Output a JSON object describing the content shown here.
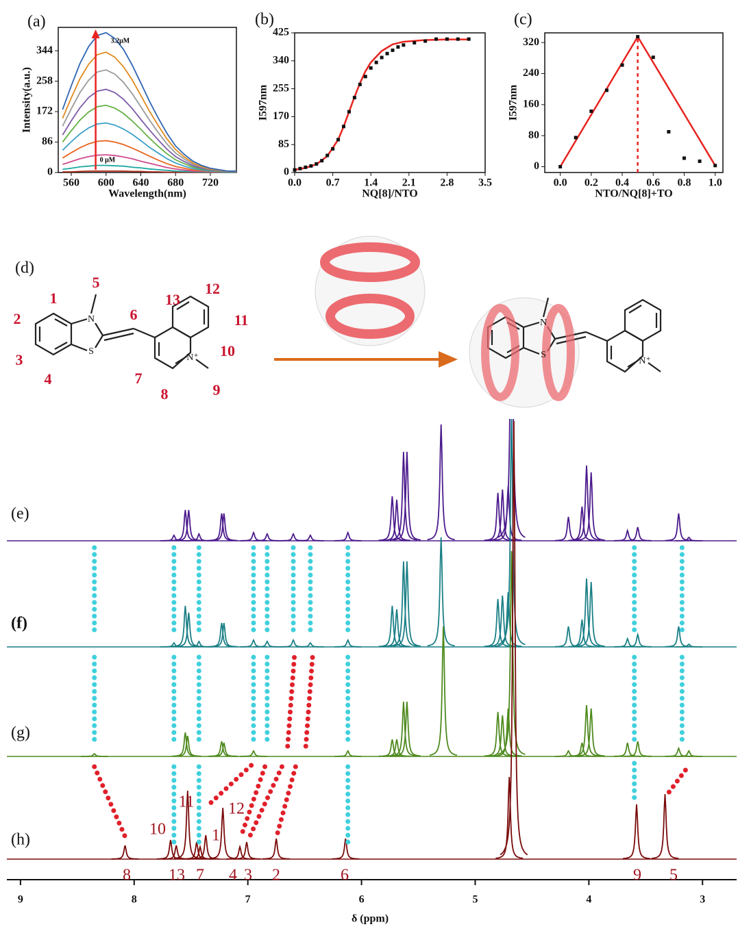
{
  "panel_labels": [
    "(a)",
    "(b)",
    "(c)",
    "(d)",
    "(e)",
    "(f)",
    "(g)",
    "(h)"
  ],
  "chart_data": [
    {
      "type": "line",
      "xlabel": "Wavelength(nm)",
      "ylabel": "Intensity(a.u.)",
      "x": [
        550,
        560,
        570,
        580,
        590,
        600,
        610,
        620,
        630,
        640,
        650,
        660,
        670,
        680,
        690,
        700,
        710,
        720,
        730,
        740,
        750
      ],
      "xlim": [
        545,
        750
      ],
      "xticks": [
        560,
        600,
        640,
        680,
        720
      ],
      "ylim": [
        0,
        410
      ],
      "yticks": [
        0,
        86,
        172,
        258,
        344
      ],
      "annotations": [
        "3.2μM",
        "0 μM"
      ],
      "arrow_color": "#e8231f",
      "series": [
        {
          "color": "#2f66b3",
          "values": [
            178,
            245,
            308,
            356,
            387,
            395,
            379,
            348,
            304,
            253,
            201,
            154,
            111,
            75,
            51,
            32,
            20,
            12,
            8,
            4,
            4
          ]
        },
        {
          "color": "#e08a1e",
          "values": [
            153,
            211,
            265,
            306,
            333,
            340,
            326,
            299,
            262,
            218,
            173,
            133,
            95,
            65,
            44,
            27,
            17,
            10,
            7,
            3,
            3
          ]
        },
        {
          "color": "#9a9a9a",
          "values": [
            131,
            180,
            226,
            261,
            284,
            290,
            278,
            255,
            223,
            186,
            148,
            113,
            81,
            55,
            38,
            23,
            15,
            9,
            6,
            3,
            3
          ]
        },
        {
          "color": "#7d5aa8",
          "values": [
            106,
            146,
            183,
            212,
            230,
            235,
            226,
            207,
            181,
            150,
            120,
            92,
            66,
            45,
            31,
            19,
            12,
            7,
            5,
            2,
            2
          ]
        },
        {
          "color": "#62b043",
          "values": [
            86,
            118,
            148,
            171,
            186,
            190,
            182,
            167,
            146,
            122,
            97,
            74,
            53,
            36,
            25,
            15,
            10,
            6,
            4,
            2,
            2
          ]
        },
        {
          "color": "#3aa0c8",
          "values": [
            63,
            87,
            109,
            126,
            137,
            140,
            134,
            123,
            108,
            90,
            71,
            55,
            39,
            27,
            18,
            11,
            7,
            4,
            3,
            1,
            1
          ]
        },
        {
          "color": "#e8641e",
          "values": [
            41,
            56,
            70,
            81,
            88,
            90,
            86,
            79,
            69,
            58,
            46,
            35,
            25,
            17,
            12,
            7,
            5,
            3,
            2,
            1,
            1
          ]
        },
        {
          "color": "#d04a8c",
          "values": [
            23,
            31,
            39,
            45,
            49,
            50,
            48,
            44,
            39,
            32,
            26,
            20,
            14,
            10,
            7,
            4,
            3,
            2,
            1,
            1,
            1
          ]
        },
        {
          "color": "#1aa7a0",
          "values": [
            9,
            12,
            16,
            18,
            20,
            20,
            19,
            18,
            15,
            13,
            10,
            8,
            6,
            4,
            3,
            2,
            1,
            1,
            0,
            0,
            0
          ]
        },
        {
          "color": "#b03020",
          "values": [
            2,
            2,
            3,
            4,
            4,
            4,
            4,
            4,
            3,
            3,
            2,
            2,
            1,
            1,
            1,
            0,
            0,
            0,
            0,
            0,
            0
          ]
        }
      ]
    },
    {
      "type": "scatter",
      "xlabel": "NQ[8]/NTO",
      "ylabel": "I597nm",
      "color": "#111111",
      "x": [
        0,
        0.1,
        0.2,
        0.3,
        0.4,
        0.5,
        0.6,
        0.7,
        0.8,
        0.9,
        1.0,
        1.1,
        1.2,
        1.3,
        1.4,
        1.5,
        1.6,
        1.7,
        1.8,
        1.9,
        2.0,
        2.2,
        2.4,
        2.6,
        2.8,
        3.0,
        3.2
      ],
      "values": [
        8,
        12,
        16,
        20,
        26,
        36,
        52,
        72,
        100,
        140,
        185,
        228,
        268,
        292,
        318,
        335,
        350,
        362,
        372,
        382,
        388,
        395,
        400,
        406,
        406,
        406,
        406
      ],
      "fit": {
        "color": "#e8231f",
        "x": [
          0,
          0.2,
          0.4,
          0.6,
          0.8,
          0.9,
          1.0,
          1.1,
          1.2,
          1.3,
          1.4,
          1.6,
          1.8,
          2.0,
          2.4,
          2.8,
          3.2
        ],
        "values": [
          8,
          14,
          25,
          50,
          100,
          140,
          185,
          230,
          272,
          308,
          335,
          370,
          390,
          398,
          403,
          405,
          405
        ]
      },
      "xlim": [
        0,
        3.5
      ],
      "xticks": [
        {
          "value": 0,
          "label": "0.0"
        },
        0.7,
        1.4,
        2.1,
        2.8,
        3.5
      ],
      "ylim": [
        0,
        425
      ],
      "yticks": [
        0,
        85,
        170,
        255,
        340,
        425
      ]
    },
    {
      "type": "scatter",
      "xlabel": "NTO/NQ[8]+TO",
      "ylabel": "I597nm",
      "color": "#111111",
      "x": [
        0,
        0.1,
        0.2,
        0.3,
        0.4,
        0.5,
        0.6,
        0.7,
        0.8,
        0.9,
        1.0
      ],
      "values": [
        0,
        75,
        143,
        197,
        262,
        335,
        282,
        90,
        22,
        14,
        3
      ],
      "fit": {
        "color": "#e8231f",
        "x": [
          0,
          0.5,
          1.0
        ],
        "values": [
          0,
          335,
          3
        ]
      },
      "vline": 0.5,
      "xlim": [
        -0.1,
        1.05
      ],
      "xticks": [
        {
          "value": 0,
          "label": "0.0"
        },
        0.2,
        0.4,
        0.6,
        0.8,
        {
          "value": 1,
          "label": "1.0"
        }
      ],
      "ylim": [
        -15,
        345
      ],
      "yticks": [
        0,
        80,
        160,
        240,
        320
      ]
    },
    {
      "type": "spectrum",
      "xlabel": "δ (ppm)",
      "xlim": [
        9.12,
        2.7
      ],
      "xticks": [
        9,
        8,
        7,
        6,
        5,
        4,
        3
      ],
      "peak_labels": [
        "8",
        "13",
        "7",
        "4",
        "3",
        "2",
        "6",
        "9",
        "5",
        "10",
        "11",
        "12",
        "1"
      ],
      "series": [
        {
          "color": "#4b1a8c",
          "peaks_x": [
            7.65,
            7.55,
            7.52,
            7.43,
            7.23,
            7.21,
            6.95,
            6.83,
            6.6,
            6.45,
            6.12,
            5.73,
            5.69,
            5.63,
            5.6,
            5.3,
            4.8,
            4.76,
            4.71,
            4.68,
            4.18,
            4.06,
            4.02,
            3.98,
            3.66,
            3.57,
            3.21,
            3.12
          ],
          "values": [
            8,
            45,
            45,
            10,
            40,
            40,
            12,
            10,
            10,
            8,
            12,
            65,
            60,
            130,
            130,
            170,
            70,
            75,
            80,
            500,
            35,
            50,
            110,
            100,
            15,
            20,
            40,
            5
          ]
        },
        {
          "color": "#1a7f86",
          "peaks_x": [
            7.65,
            7.55,
            7.52,
            7.43,
            7.23,
            7.21,
            6.95,
            6.83,
            6.6,
            6.45,
            6.12,
            5.73,
            5.69,
            5.63,
            5.6,
            5.3,
            4.8,
            4.76,
            4.71,
            4.68,
            4.18,
            4.06,
            4.02,
            3.98,
            3.66,
            3.57,
            3.21,
            3.12
          ],
          "values": [
            6,
            60,
            50,
            8,
            35,
            35,
            10,
            8,
            10,
            6,
            10,
            60,
            55,
            125,
            125,
            160,
            70,
            75,
            80,
            340,
            30,
            40,
            100,
            95,
            12,
            18,
            30,
            4
          ]
        },
        {
          "color": "#4e8a1e",
          "peaks_x": [
            8.35,
            7.55,
            7.53,
            7.23,
            7.21,
            6.95,
            6.12,
            5.73,
            5.69,
            5.63,
            5.6,
            5.28,
            4.8,
            4.76,
            4.71,
            4.68,
            4.18,
            4.06,
            4.02,
            3.98,
            3.66,
            3.57,
            3.21,
            3.12
          ],
          "values": [
            4,
            35,
            30,
            22,
            20,
            8,
            8,
            25,
            25,
            80,
            80,
            190,
            65,
            60,
            70,
            300,
            8,
            20,
            75,
            70,
            20,
            22,
            12,
            8
          ]
        },
        {
          "color": "#7a0a0a",
          "peaks_x": [
            8.08,
            7.68,
            7.63,
            7.53,
            7.45,
            7.42,
            7.37,
            7.22,
            7.07,
            7.01,
            6.75,
            6.14,
            4.7,
            4.66,
            3.58,
            3.33
          ],
          "values": [
            20,
            28,
            20,
            100,
            25,
            18,
            35,
            75,
            18,
            25,
            30,
            30,
            120,
            640,
            80,
            95
          ]
        }
      ]
    }
  ],
  "diagram": {
    "numbers": [
      "1",
      "2",
      "3",
      "4",
      "5",
      "6",
      "7",
      "8",
      "9",
      "10",
      "11",
      "12",
      "13"
    ],
    "atoms": [
      "N",
      "S",
      "N⁺",
      "N",
      "S",
      "N⁺"
    ]
  }
}
